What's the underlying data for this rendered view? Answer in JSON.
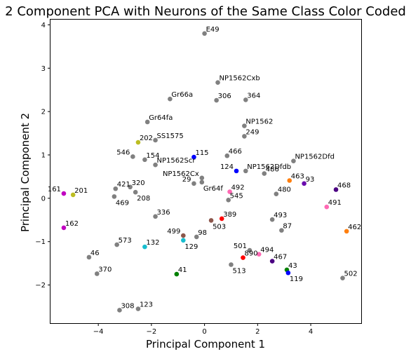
{
  "chart_data": {
    "type": "scatter",
    "title": "2 Component PCA with Neurons of the Same Class Color Coded",
    "xlabel": "Principal Component 1",
    "ylabel": "Principal Component 2",
    "xlim": [
      -5.8,
      5.9
    ],
    "ylim": [
      -2.88,
      4.12
    ],
    "xticks": [
      -4,
      -2,
      0,
      2,
      4
    ],
    "yticks": [
      -2,
      -1,
      0,
      1,
      2,
      3,
      4
    ],
    "grid": false,
    "points": [
      {
        "label": "E49",
        "x": 0.0,
        "y": 3.8,
        "color": "#808080",
        "anchor": "right"
      },
      {
        "label": "NP1562Cxb",
        "x": 0.5,
        "y": 2.67,
        "color": "#808080",
        "anchor": "right"
      },
      {
        "label": "Gr66a",
        "x": -1.3,
        "y": 2.29,
        "color": "#808080",
        "anchor": "right"
      },
      {
        "label": "306",
        "x": 0.45,
        "y": 2.26,
        "color": "#808080",
        "anchor": "right"
      },
      {
        "label": "364",
        "x": 1.55,
        "y": 2.27,
        "color": "#808080",
        "anchor": "right"
      },
      {
        "label": "Gr64fa",
        "x": -2.15,
        "y": 1.76,
        "color": "#808080",
        "anchor": "right"
      },
      {
        "label": "NP1562",
        "x": 1.5,
        "y": 1.67,
        "color": "#808080",
        "anchor": "right"
      },
      {
        "label": "249",
        "x": 1.5,
        "y": 1.43,
        "color": "#808080",
        "anchor": "right"
      },
      {
        "label": "202",
        "x": -2.5,
        "y": 1.29,
        "color": "#bcbd22",
        "anchor": "right"
      },
      {
        "label": "SS1575",
        "x": -1.85,
        "y": 1.34,
        "color": "#808080",
        "anchor": "right"
      },
      {
        "label": "546",
        "x": -2.7,
        "y": 0.96,
        "color": "#808080",
        "anchor": "left"
      },
      {
        "label": "154",
        "x": -2.25,
        "y": 0.89,
        "color": "#808080",
        "anchor": "right"
      },
      {
        "label": "115",
        "x": -0.4,
        "y": 0.95,
        "color": "#0000ff",
        "anchor": "right"
      },
      {
        "label": "466",
        "x": 0.85,
        "y": 0.98,
        "color": "#808080",
        "anchor": "right"
      },
      {
        "label": "NP1562Dfd",
        "x": 3.35,
        "y": 0.86,
        "color": "#808080",
        "anchor": "right"
      },
      {
        "label": "NP1562Scr",
        "x": -1.85,
        "y": 0.77,
        "color": "#808080",
        "anchor": "right"
      },
      {
        "label": "124",
        "x": 1.2,
        "y": 0.63,
        "color": "#0000ff",
        "anchor": "left"
      },
      {
        "label": "NP1562Dfdb",
        "x": 1.55,
        "y": 0.63,
        "color": "#808080",
        "anchor": "right"
      },
      {
        "label": "486",
        "x": 2.25,
        "y": 0.57,
        "color": "#808080",
        "anchor": "right"
      },
      {
        "label": "NP1562Cx",
        "x": -0.1,
        "y": 0.47,
        "color": "#808080",
        "anchor": "left"
      },
      {
        "label": "463",
        "x": 3.2,
        "y": 0.41,
        "color": "#ff7f0e",
        "anchor": "right"
      },
      {
        "label": "93",
        "x": 3.75,
        "y": 0.34,
        "color": "#6a0dad",
        "anchor": "right"
      },
      {
        "label": "468",
        "x": 4.95,
        "y": 0.2,
        "color": "#4b0082",
        "anchor": "right"
      },
      {
        "label": "421",
        "x": -3.35,
        "y": 0.22,
        "color": "#808080",
        "anchor": "right"
      },
      {
        "label": "320",
        "x": -2.8,
        "y": 0.26,
        "color": "#808080",
        "anchor": "right"
      },
      {
        "label": "29",
        "x": -0.4,
        "y": 0.34,
        "color": "#808080",
        "anchor": "left"
      },
      {
        "label": "Gr64f",
        "x": -0.1,
        "y": 0.37,
        "color": "#808080",
        "anchor": "below-right"
      },
      {
        "label": "492",
        "x": 0.95,
        "y": 0.15,
        "color": "#ff69b4",
        "anchor": "right"
      },
      {
        "label": "480",
        "x": 2.7,
        "y": 0.1,
        "color": "#808080",
        "anchor": "right"
      },
      {
        "label": "161",
        "x": -5.3,
        "y": 0.11,
        "color": "#c000c0",
        "anchor": "left"
      },
      {
        "label": "201",
        "x": -4.95,
        "y": 0.08,
        "color": "#bcbd22",
        "anchor": "right"
      },
      {
        "label": "208",
        "x": -2.6,
        "y": 0.14,
        "color": "#808080",
        "anchor": "below-right"
      },
      {
        "label": "469",
        "x": -3.4,
        "y": 0.04,
        "color": "#808080",
        "anchor": "below-right"
      },
      {
        "label": "545",
        "x": 0.9,
        "y": -0.04,
        "color": "#808080",
        "anchor": "right"
      },
      {
        "label": "491",
        "x": 4.6,
        "y": -0.2,
        "color": "#ff69b4",
        "anchor": "right"
      },
      {
        "label": "336",
        "x": -1.85,
        "y": -0.42,
        "color": "#808080",
        "anchor": "right"
      },
      {
        "label": "389",
        "x": 0.65,
        "y": -0.47,
        "color": "#ff0000",
        "anchor": "right"
      },
      {
        "label": "503",
        "x": 0.25,
        "y": -0.51,
        "color": "#8c564b",
        "anchor": "below-right"
      },
      {
        "label": "493",
        "x": 2.55,
        "y": -0.49,
        "color": "#808080",
        "anchor": "right"
      },
      {
        "label": "462",
        "x": 5.35,
        "y": -0.76,
        "color": "#ff7f0e",
        "anchor": "right"
      },
      {
        "label": "162",
        "x": -5.3,
        "y": -0.68,
        "color": "#c000c0",
        "anchor": "right"
      },
      {
        "label": "87",
        "x": 2.9,
        "y": -0.74,
        "color": "#808080",
        "anchor": "right"
      },
      {
        "label": "98",
        "x": -0.3,
        "y": -0.89,
        "color": "#808080",
        "anchor": "right"
      },
      {
        "label": "499",
        "x": -0.8,
        "y": -0.86,
        "color": "#8c564b",
        "anchor": "left"
      },
      {
        "label": "129",
        "x": -0.8,
        "y": -0.97,
        "color": "#17becf",
        "anchor": "below-right"
      },
      {
        "label": "573",
        "x": -3.3,
        "y": -1.07,
        "color": "#808080",
        "anchor": "right"
      },
      {
        "label": "132",
        "x": -2.25,
        "y": -1.12,
        "color": "#17becf",
        "anchor": "right"
      },
      {
        "label": "501",
        "x": 1.7,
        "y": -1.2,
        "color": "#808080",
        "anchor": "left"
      },
      {
        "label": "494",
        "x": 2.05,
        "y": -1.29,
        "color": "#ff69b4",
        "anchor": "right"
      },
      {
        "label": "890",
        "x": 1.45,
        "y": -1.37,
        "color": "#ff0000",
        "anchor": "right"
      },
      {
        "label": "46",
        "x": -4.35,
        "y": -1.36,
        "color": "#808080",
        "anchor": "right"
      },
      {
        "label": "467",
        "x": 2.55,
        "y": -1.45,
        "color": "#4b0082",
        "anchor": "right"
      },
      {
        "label": "513",
        "x": 1.0,
        "y": -1.53,
        "color": "#808080",
        "anchor": "below-right"
      },
      {
        "label": "43",
        "x": 3.1,
        "y": -1.65,
        "color": "#008000",
        "anchor": "right"
      },
      {
        "label": "119",
        "x": 3.15,
        "y": -1.72,
        "color": "#0000ff",
        "anchor": "below-right"
      },
      {
        "label": "370",
        "x": -4.05,
        "y": -1.74,
        "color": "#808080",
        "anchor": "right"
      },
      {
        "label": "41",
        "x": -1.05,
        "y": -1.75,
        "color": "#008000",
        "anchor": "right"
      },
      {
        "label": "502",
        "x": 5.2,
        "y": -1.84,
        "color": "#808080",
        "anchor": "right"
      },
      {
        "label": "308",
        "x": -3.2,
        "y": -2.58,
        "color": "#808080",
        "anchor": "right"
      },
      {
        "label": "123",
        "x": -2.5,
        "y": -2.55,
        "color": "#808080",
        "anchor": "right"
      }
    ]
  }
}
